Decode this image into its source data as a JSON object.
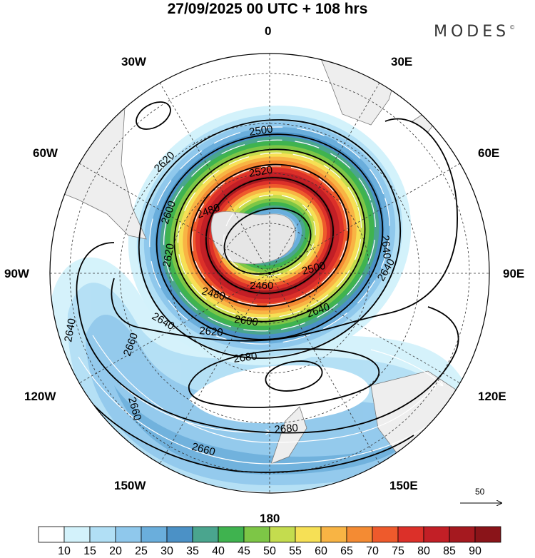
{
  "title": "27/09/2025  00 UTC  + 108 hrs",
  "logo": "MODES",
  "logo_mark": "©",
  "longitude_labels": {
    "n0": "0",
    "n30e": "30E",
    "n60e": "60E",
    "n90e": "90E",
    "n120e": "120E",
    "n150e": "150E",
    "n180": "180",
    "n150w": "150W",
    "n120w": "120W",
    "n90w": "90W",
    "n60w": "60W",
    "n30w": "30W"
  },
  "contour_labels": {
    "l2500a": "2500",
    "l2520": "2520",
    "l2620a": "2620",
    "l2480a": "2480",
    "l2600a": "2600",
    "l2620b": "2620",
    "l2640a": "2640",
    "l2460": "2460",
    "l2480b": "2480",
    "l2500b": "2500",
    "l2640b": "2640",
    "l2640c": "2640",
    "l2620c": "2620",
    "l2600b": "2600",
    "l2640d": "2640",
    "l2680a": "2680",
    "l2640e": "2640",
    "l2660a": "2660",
    "l2660b": "2660",
    "l2680b": "2680",
    "l2660c": "2660"
  },
  "vector_reference": "50",
  "colorbar": {
    "labels": [
      "10",
      "15",
      "20",
      "25",
      "30",
      "35",
      "40",
      "45",
      "50",
      "55",
      "60",
      "65",
      "70",
      "75",
      "80",
      "85",
      "90"
    ],
    "colors": [
      "#ffffff",
      "#d3f2fb",
      "#b1dff5",
      "#8fc8ec",
      "#6aaedc",
      "#4b91c6",
      "#4aa58e",
      "#3fb34f",
      "#7dc646",
      "#c4dc4e",
      "#f6e055",
      "#f8b444",
      "#f48b33",
      "#ee5a2c",
      "#dc3029",
      "#c21f26",
      "#a5191f",
      "#8a1419"
    ]
  },
  "colors": {
    "land": "#eeeeee",
    "coast": "#777777",
    "contour": "#000000",
    "grid": "#333333"
  }
}
